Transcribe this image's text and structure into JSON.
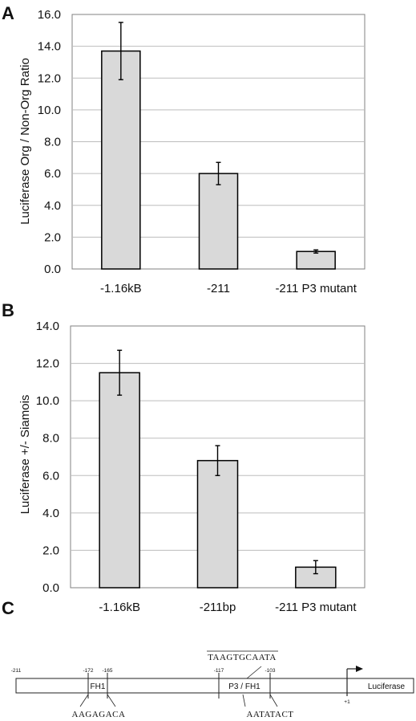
{
  "colors": {
    "bar_fill": "#d9d9d9",
    "bar_stroke": "#000000",
    "grid": "#bdbdbd",
    "frame": "#808080"
  },
  "chart_data": [
    {
      "panel": "A",
      "type": "bar",
      "ylabel": "Luciferase Org / Non-Org Ratio",
      "ylim": [
        0,
        16
      ],
      "yticks": [
        "0.0",
        "2.0",
        "4.0",
        "6.0",
        "8.0",
        "10.0",
        "12.0",
        "14.0",
        "16.0"
      ],
      "categories": [
        "-1.16kB",
        "-211",
        "-211 P3 mutant"
      ],
      "values": [
        13.7,
        6.0,
        1.1
      ],
      "errors": [
        1.8,
        0.7,
        0.1
      ],
      "grid": true
    },
    {
      "panel": "B",
      "type": "bar",
      "ylabel": "Luciferase +/- Siamois",
      "ylim": [
        0,
        14
      ],
      "yticks": [
        "0.0",
        "2.0",
        "4.0",
        "6.0",
        "8.0",
        "10.0",
        "12.0",
        "14.0"
      ],
      "categories": [
        "-1.16kB",
        "-211bp",
        "-211 P3 mutant"
      ],
      "values": [
        11.5,
        6.8,
        1.1
      ],
      "errors": [
        1.2,
        0.8,
        0.35
      ],
      "grid": true
    }
  ],
  "panel_c": {
    "label": "C",
    "positions": [
      "-211",
      "-172",
      "-165",
      "-117",
      "-103",
      "+1"
    ],
    "boxes": [
      "FH1",
      "P3 / FH1",
      "Luciferase"
    ],
    "sequence_top": "TAAGTGCAATA",
    "sequence_left": "AAGAGACA",
    "sequence_right": "AATATACT"
  }
}
